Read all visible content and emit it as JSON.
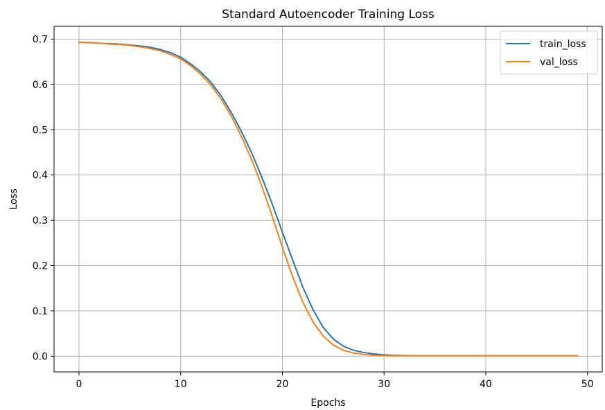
{
  "chart_data": {
    "type": "line",
    "title": "Standard Autoencoder Training Loss",
    "xlabel": "Epochs",
    "ylabel": "Loss",
    "xlim": [
      -2.45,
      51.45
    ],
    "ylim": [
      -0.0347,
      0.7282
    ],
    "xticks": [
      0,
      10,
      20,
      30,
      40,
      50
    ],
    "xtick_labels": [
      "0",
      "10",
      "20",
      "30",
      "40",
      "50"
    ],
    "yticks": [
      0.0,
      0.1,
      0.2,
      0.3,
      0.4,
      0.5,
      0.6,
      0.7
    ],
    "ytick_labels": [
      "0.0",
      "0.1",
      "0.2",
      "0.3",
      "0.4",
      "0.5",
      "0.6",
      "0.7"
    ],
    "grid": true,
    "legend_position": "top-right",
    "x": [
      0,
      1,
      2,
      3,
      4,
      5,
      6,
      7,
      8,
      9,
      10,
      11,
      12,
      13,
      14,
      15,
      16,
      17,
      18,
      19,
      20,
      21,
      22,
      23,
      24,
      25,
      26,
      27,
      28,
      29,
      30,
      31,
      32,
      33,
      34,
      35,
      36,
      37,
      38,
      39,
      40,
      41,
      42,
      43,
      44,
      45,
      46,
      47,
      48,
      49
    ],
    "series": [
      {
        "name": "train_loss",
        "color": "#1f77b4",
        "values": [
          0.693,
          0.692,
          0.691,
          0.69,
          0.689,
          0.687,
          0.685,
          0.682,
          0.677,
          0.67,
          0.66,
          0.645,
          0.627,
          0.604,
          0.574,
          0.537,
          0.495,
          0.448,
          0.394,
          0.336,
          0.274,
          0.213,
          0.153,
          0.103,
          0.064,
          0.038,
          0.022,
          0.013,
          0.008,
          0.005,
          0.003,
          0.002,
          0.0015,
          0.001,
          0.001,
          0.001,
          0.001,
          0.001,
          0.001,
          0.001,
          0.001,
          0.001,
          0.001,
          0.001,
          0.001,
          0.001,
          0.001,
          0.001,
          0.001,
          0.001
        ]
      },
      {
        "name": "val_loss",
        "color": "#ff7f0e",
        "values": [
          0.693,
          0.692,
          0.691,
          0.689,
          0.688,
          0.686,
          0.683,
          0.679,
          0.674,
          0.666,
          0.656,
          0.641,
          0.622,
          0.598,
          0.567,
          0.529,
          0.484,
          0.433,
          0.374,
          0.309,
          0.241,
          0.176,
          0.12,
          0.076,
          0.045,
          0.025,
          0.013,
          0.007,
          0.004,
          0.002,
          0.0015,
          0.001,
          0.001,
          0.001,
          0.001,
          0.001,
          0.001,
          0.001,
          0.001,
          0.001,
          0.001,
          0.001,
          0.001,
          0.001,
          0.001,
          0.001,
          0.001,
          0.001,
          0.001,
          0.001
        ]
      }
    ]
  }
}
